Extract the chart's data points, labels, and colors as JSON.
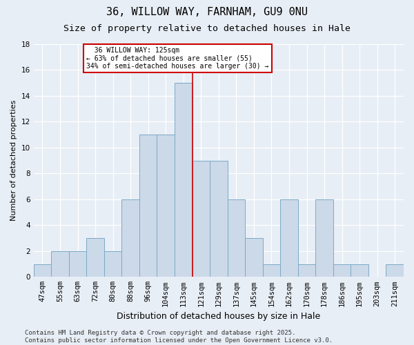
{
  "title1": "36, WILLOW WAY, FARNHAM, GU9 0NU",
  "title2": "Size of property relative to detached houses in Hale",
  "xlabel": "Distribution of detached houses by size in Hale",
  "ylabel": "Number of detached properties",
  "categories": [
    "47sqm",
    "55sqm",
    "63sqm",
    "72sqm",
    "80sqm",
    "88sqm",
    "96sqm",
    "104sqm",
    "113sqm",
    "121sqm",
    "129sqm",
    "137sqm",
    "145sqm",
    "154sqm",
    "162sqm",
    "170sqm",
    "178sqm",
    "186sqm",
    "195sqm",
    "203sqm",
    "211sqm"
  ],
  "values": [
    1,
    2,
    2,
    3,
    2,
    6,
    11,
    11,
    15,
    9,
    9,
    6,
    3,
    1,
    6,
    1,
    6,
    1,
    1,
    0,
    1
  ],
  "bar_color": "#ccd9e8",
  "bar_edge_color": "#7aaac8",
  "highlight_index": 8,
  "highlight_line_color": "#cc0000",
  "bg_color": "#e8eef5",
  "annotation_text": "  36 WILLOW WAY: 125sqm  \n← 63% of detached houses are smaller (55)\n34% of semi-detached houses are larger (30) →",
  "annotation_box_color": "#ffffff",
  "annotation_box_edge": "#cc0000",
  "ylim": [
    0,
    18
  ],
  "yticks": [
    0,
    2,
    4,
    6,
    8,
    10,
    12,
    14,
    16,
    18
  ],
  "footer": "Contains HM Land Registry data © Crown copyright and database right 2025.\nContains public sector information licensed under the Open Government Licence v3.0.",
  "title1_fontsize": 11,
  "title2_fontsize": 9.5,
  "xlabel_fontsize": 9,
  "ylabel_fontsize": 8,
  "tick_fontsize": 7.5,
  "annotation_fontsize": 7,
  "footer_fontsize": 6.5
}
